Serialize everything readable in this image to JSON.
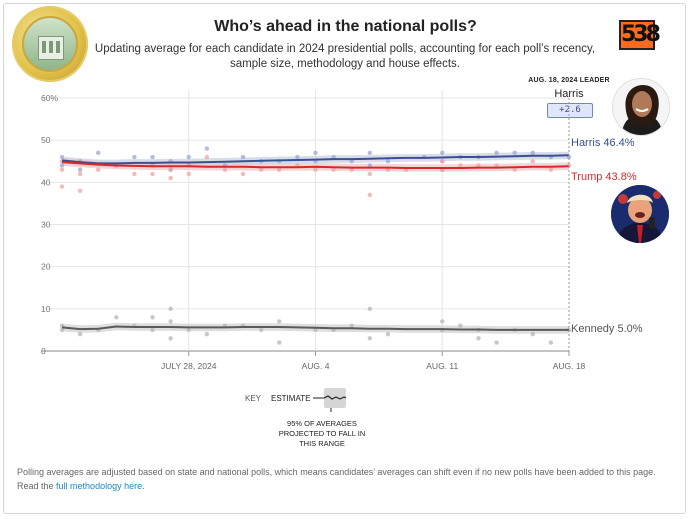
{
  "header": {
    "title": "Who’s ahead in the national polls?",
    "subtitle": "Updating average for each candidate in 2024 presidential polls, accounting for each poll’s recency, sample size, methodology and house effects.",
    "logo_text": "538"
  },
  "leader": {
    "header": "AUG. 18, 2024 LEADER",
    "name": "Harris",
    "margin": "+2.6"
  },
  "labels": {
    "harris": "Harris 46.4%",
    "trump": "Trump 43.8%",
    "kennedy": "Kennedy 5.0%"
  },
  "key": {
    "label": "KEY",
    "estimate": "ESTIMATE",
    "note": "95% OF AVERAGES PROJECTED TO FALL IN THIS RANGE"
  },
  "footer": {
    "text": "Polling averages are adjusted based on state and national polls, which means candidates’ averages can shift even if no new polls have been added to this page. Read the",
    "link": "full methodology here",
    "end": "."
  },
  "colors": {
    "harris": "#3b4f93",
    "trump": "#d42a2a",
    "kennedy": "#5a5a5a",
    "accent": "#ff6a1f"
  },
  "chart_data": {
    "type": "line",
    "x_label": "",
    "y_label": "",
    "ylim": [
      0,
      60
    ],
    "y_ticks": [
      "60%",
      "50",
      "40",
      "30",
      "20",
      "10",
      "0"
    ],
    "x_ticks": [
      "JULY 28, 2024",
      "AUG. 4",
      "AUG. 11",
      "AUG. 18"
    ],
    "x": [
      "2024-07-21",
      "2024-07-22",
      "2024-07-23",
      "2024-07-24",
      "2024-07-25",
      "2024-07-26",
      "2024-07-27",
      "2024-07-28",
      "2024-07-29",
      "2024-07-30",
      "2024-07-31",
      "2024-08-01",
      "2024-08-02",
      "2024-08-03",
      "2024-08-04",
      "2024-08-05",
      "2024-08-06",
      "2024-08-07",
      "2024-08-08",
      "2024-08-09",
      "2024-08-10",
      "2024-08-11",
      "2024-08-12",
      "2024-08-13",
      "2024-08-14",
      "2024-08-15",
      "2024-08-16",
      "2024-08-17",
      "2024-08-18"
    ],
    "series": [
      {
        "name": "Harris",
        "color": "#3b4f93",
        "values": [
          45.2,
          44.8,
          44.5,
          44.5,
          44.6,
          44.6,
          44.7,
          44.7,
          44.8,
          44.9,
          45.0,
          45.1,
          45.2,
          45.3,
          45.4,
          45.5,
          45.5,
          45.6,
          45.7,
          45.8,
          45.8,
          45.9,
          46.0,
          46.0,
          46.1,
          46.2,
          46.3,
          46.3,
          46.4
        ]
      },
      {
        "name": "Trump",
        "color": "#d42a2a",
        "values": [
          44.8,
          44.5,
          44.2,
          44.0,
          43.9,
          43.8,
          43.8,
          43.8,
          43.7,
          43.7,
          43.7,
          43.6,
          43.6,
          43.6,
          43.7,
          43.6,
          43.5,
          43.5,
          43.5,
          43.4,
          43.4,
          43.4,
          43.4,
          43.5,
          43.5,
          43.6,
          43.7,
          43.7,
          43.8
        ]
      },
      {
        "name": "Kennedy",
        "color": "#5a5a5a",
        "values": [
          5.6,
          5.2,
          5.3,
          5.8,
          5.7,
          5.7,
          5.7,
          5.6,
          5.6,
          5.6,
          5.7,
          5.7,
          5.7,
          5.6,
          5.5,
          5.4,
          5.4,
          5.3,
          5.3,
          5.2,
          5.2,
          5.2,
          5.1,
          5.1,
          5.0,
          5.0,
          5.0,
          5.0,
          5.0
        ]
      }
    ],
    "polls": {
      "harris": [
        [
          0,
          44
        ],
        [
          0,
          46
        ],
        [
          1,
          45
        ],
        [
          1,
          43
        ],
        [
          2,
          47
        ],
        [
          3,
          44
        ],
        [
          4,
          46
        ],
        [
          5,
          44
        ],
        [
          5,
          46
        ],
        [
          6,
          45
        ],
        [
          6,
          43
        ],
        [
          7,
          46
        ],
        [
          7,
          44
        ],
        [
          8,
          48
        ],
        [
          9,
          44
        ],
        [
          10,
          46
        ],
        [
          11,
          45
        ],
        [
          12,
          45
        ],
        [
          13,
          46
        ],
        [
          14,
          45
        ],
        [
          14,
          47
        ],
        [
          15,
          46
        ],
        [
          16,
          45
        ],
        [
          17,
          44
        ],
        [
          17,
          47
        ],
        [
          18,
          45
        ],
        [
          20,
          46
        ],
        [
          21,
          47
        ],
        [
          21,
          45
        ],
        [
          21,
          43
        ],
        [
          22,
          46
        ],
        [
          23,
          46
        ],
        [
          24,
          47
        ],
        [
          25,
          47
        ],
        [
          26,
          47
        ],
        [
          27,
          46
        ],
        [
          28,
          46
        ]
      ],
      "trump": [
        [
          0,
          43
        ],
        [
          0,
          45
        ],
        [
          0,
          39
        ],
        [
          1,
          42
        ],
        [
          1,
          38
        ],
        [
          2,
          43
        ],
        [
          3,
          44
        ],
        [
          4,
          42
        ],
        [
          5,
          44
        ],
        [
          5,
          42
        ],
        [
          6,
          43
        ],
        [
          6,
          41
        ],
        [
          7,
          44
        ],
        [
          7,
          42
        ],
        [
          8,
          46
        ],
        [
          9,
          43
        ],
        [
          10,
          42
        ],
        [
          11,
          43
        ],
        [
          12,
          43
        ],
        [
          13,
          44
        ],
        [
          14,
          43
        ],
        [
          15,
          43
        ],
        [
          16,
          43
        ],
        [
          17,
          42
        ],
        [
          17,
          37
        ],
        [
          18,
          43
        ],
        [
          19,
          43
        ],
        [
          21,
          43
        ],
        [
          21,
          45
        ],
        [
          22,
          44
        ],
        [
          23,
          44
        ],
        [
          24,
          44
        ],
        [
          25,
          43
        ],
        [
          26,
          45
        ],
        [
          27,
          43
        ],
        [
          28,
          44
        ]
      ],
      "kennedy": [
        [
          0,
          6
        ],
        [
          0,
          5
        ],
        [
          1,
          4
        ],
        [
          2,
          5
        ],
        [
          3,
          8
        ],
        [
          4,
          6
        ],
        [
          5,
          8
        ],
        [
          5,
          5
        ],
        [
          6,
          10
        ],
        [
          6,
          7
        ],
        [
          6,
          3
        ],
        [
          7,
          5
        ],
        [
          8,
          4
        ],
        [
          9,
          6
        ],
        [
          10,
          6
        ],
        [
          11,
          5
        ],
        [
          12,
          7
        ],
        [
          12,
          2
        ],
        [
          14,
          5
        ],
        [
          15,
          5
        ],
        [
          16,
          6
        ],
        [
          17,
          10
        ],
        [
          17,
          3
        ],
        [
          18,
          4
        ],
        [
          21,
          7
        ],
        [
          21,
          5
        ],
        [
          22,
          6
        ],
        [
          23,
          5
        ],
        [
          23,
          3
        ],
        [
          24,
          2
        ],
        [
          25,
          5
        ],
        [
          26,
          4
        ],
        [
          27,
          2
        ],
        [
          28,
          5
        ]
      ]
    }
  }
}
